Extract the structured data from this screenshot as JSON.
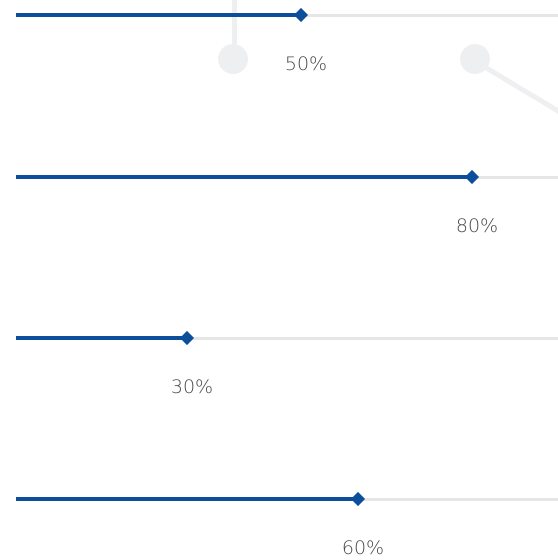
{
  "colors": {
    "accent": "#0b4f9c",
    "track": "#e6e6e6",
    "label": "#4a4a4a"
  },
  "sliders": [
    {
      "value": 50,
      "label": "50%"
    },
    {
      "value": 80,
      "label": "80%"
    },
    {
      "value": 30,
      "label": "30%"
    },
    {
      "value": 60,
      "label": "60%"
    }
  ]
}
